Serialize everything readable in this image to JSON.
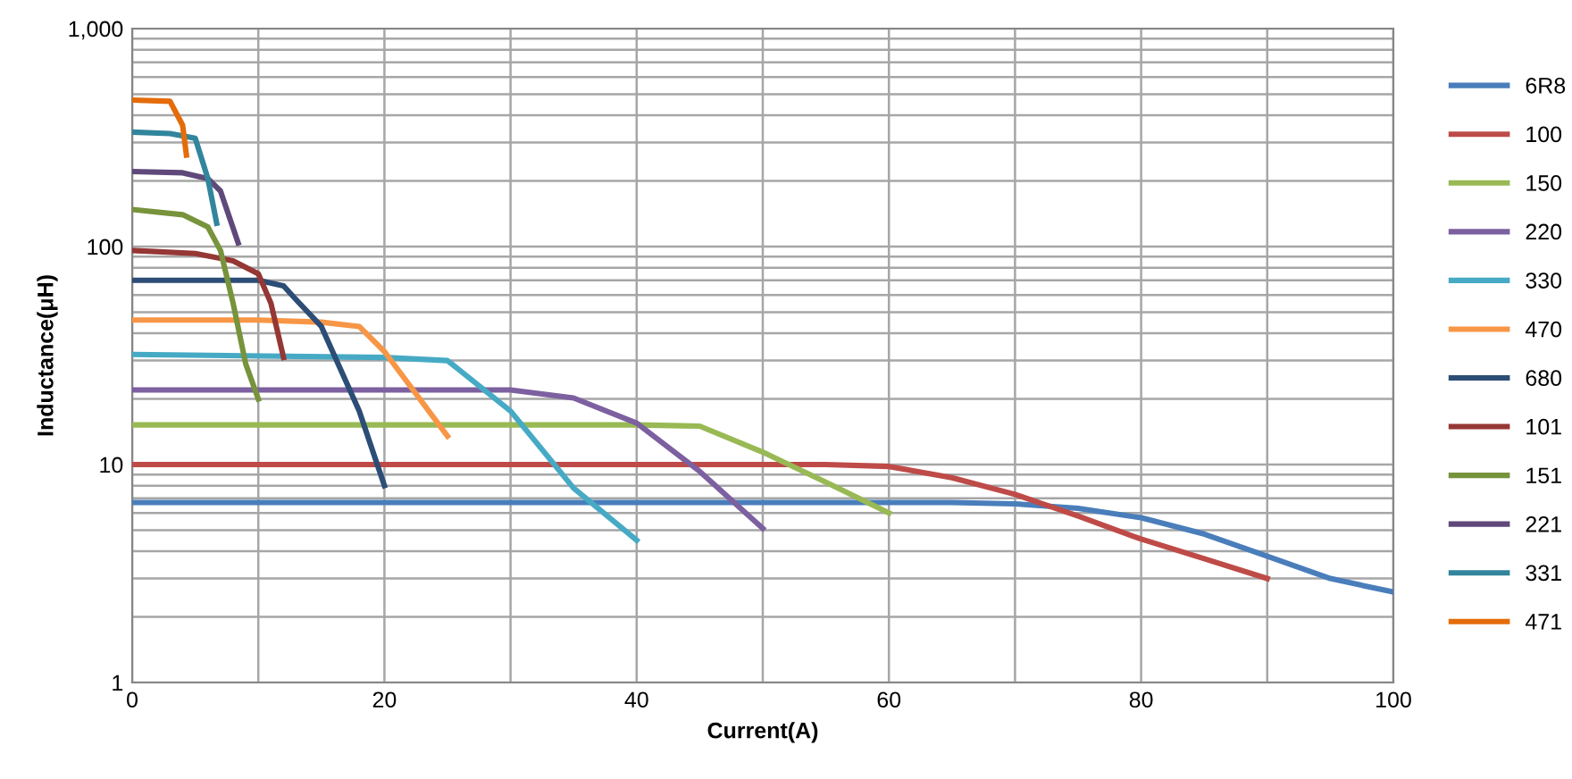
{
  "chart_data": {
    "type": "line",
    "xlabel": "Current(A)",
    "ylabel": "Inductance(μH)",
    "log": "y",
    "grid": true,
    "legend": "right",
    "marker": "none",
    "line_style": "solid",
    "xlim": [
      0,
      100
    ],
    "ylim": [
      1,
      1000
    ],
    "xticks": [
      0,
      {
        "value": 10,
        "label": null
      },
      20,
      {
        "value": 30,
        "label": null
      },
      40,
      {
        "value": 50,
        "label": null
      },
      60,
      {
        "value": 70,
        "label": null
      },
      80,
      {
        "value": 90,
        "label": null
      },
      100
    ],
    "yticks": [
      1,
      {
        "value": 2,
        "label": null
      },
      {
        "value": 3,
        "label": null
      },
      {
        "value": 4,
        "label": null
      },
      {
        "value": 5,
        "label": null
      },
      {
        "value": 6,
        "label": null
      },
      {
        "value": 7,
        "label": null
      },
      {
        "value": 8,
        "label": null
      },
      {
        "value": 9,
        "label": null
      },
      10,
      {
        "value": 20,
        "label": null
      },
      {
        "value": 30,
        "label": null
      },
      {
        "value": 40,
        "label": null
      },
      {
        "value": 50,
        "label": null
      },
      {
        "value": 60,
        "label": null
      },
      {
        "value": 70,
        "label": null
      },
      {
        "value": 80,
        "label": null
      },
      {
        "value": 90,
        "label": null
      },
      100,
      {
        "value": 200,
        "label": null
      },
      {
        "value": 300,
        "label": null
      },
      {
        "value": 400,
        "label": null
      },
      {
        "value": 500,
        "label": null
      },
      {
        "value": 600,
        "label": null
      },
      {
        "value": 700,
        "label": null
      },
      {
        "value": 800,
        "label": null
      },
      {
        "value": 900,
        "label": null
      },
      {
        "value": 1000,
        "label": "1,000"
      }
    ],
    "series": [
      {
        "name": "6R8",
        "color": "#4a7ebb",
        "x": [
          0,
          20,
          40,
          60,
          65,
          70,
          75,
          80,
          85,
          90,
          95,
          100
        ],
        "values": [
          6.7,
          6.7,
          6.7,
          6.7,
          6.7,
          6.6,
          6.3,
          5.7,
          4.8,
          3.8,
          3.0,
          2.6
        ]
      },
      {
        "name": "100",
        "color": "#be4b48",
        "x": [
          0,
          20,
          40,
          55,
          60,
          65,
          70,
          75,
          80,
          85,
          90
        ],
        "values": [
          10,
          10,
          10,
          10,
          9.8,
          8.7,
          7.3,
          5.8,
          4.55,
          3.7,
          3.0
        ]
      },
      {
        "name": "150",
        "color": "#98b954",
        "x": [
          0,
          20,
          40,
          45,
          50,
          55,
          60
        ],
        "values": [
          15.2,
          15.2,
          15.2,
          15,
          11.4,
          8.3,
          6.0
        ]
      },
      {
        "name": "220",
        "color": "#7d60a0",
        "x": [
          0,
          20,
          30,
          35,
          40,
          45,
          50
        ],
        "values": [
          22,
          22,
          22,
          20.2,
          15.5,
          9.3,
          5.1
        ]
      },
      {
        "name": "330",
        "color": "#46aac5",
        "x": [
          0,
          20,
          25,
          30,
          35,
          40
        ],
        "values": [
          32,
          31,
          30,
          17.6,
          7.8,
          4.5
        ]
      },
      {
        "name": "470",
        "color": "#f79646",
        "x": [
          0,
          10,
          15,
          18,
          20,
          25
        ],
        "values": [
          46,
          46,
          45,
          43,
          33,
          13.5
        ]
      },
      {
        "name": "680",
        "color": "#2c4d75",
        "x": [
          0,
          10,
          12,
          13,
          15,
          18,
          20
        ],
        "values": [
          70,
          70,
          66,
          57,
          43,
          17.6,
          8.0
        ]
      },
      {
        "name": "101",
        "color": "#953735",
        "x": [
          0,
          5,
          8,
          10,
          11,
          12
        ],
        "values": [
          96,
          93,
          86,
          75,
          55,
          31
        ]
      },
      {
        "name": "151",
        "color": "#77933c",
        "x": [
          0,
          4,
          6,
          7,
          8,
          9,
          10
        ],
        "values": [
          148,
          140,
          123,
          96,
          55,
          29,
          20
        ]
      },
      {
        "name": "221",
        "color": "#5f497a",
        "x": [
          0,
          4,
          6,
          7,
          8.4
        ],
        "values": [
          221,
          218,
          205,
          180,
          104
        ]
      },
      {
        "name": "331",
        "color": "#31859c",
        "x": [
          0,
          3,
          5,
          6,
          6.7
        ],
        "values": [
          335,
          330,
          314,
          205,
          128
        ]
      },
      {
        "name": "471",
        "color": "#e46c0a",
        "x": [
          0,
          3,
          4,
          4.3
        ],
        "values": [
          470,
          464,
          360,
          263
        ]
      }
    ]
  }
}
